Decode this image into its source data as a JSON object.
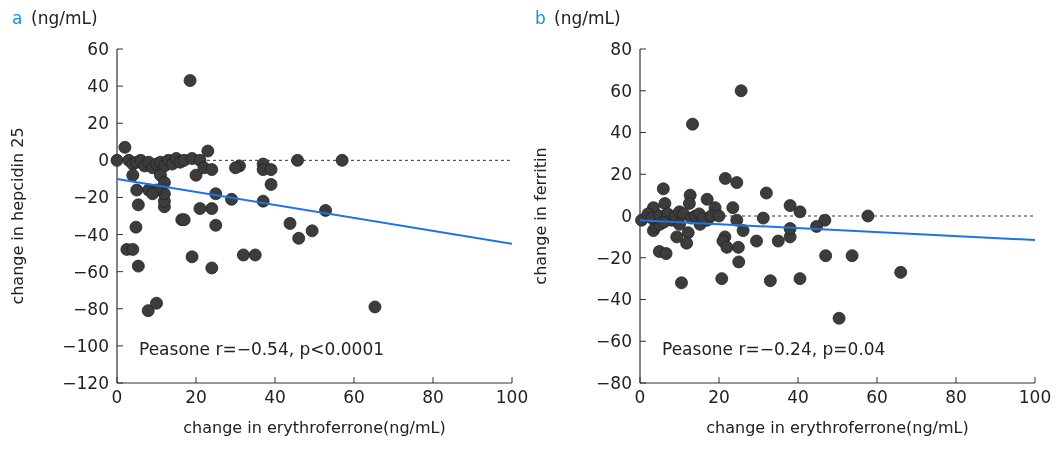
{
  "chart_data": [
    {
      "type": "scatter",
      "title": "a",
      "subtitle": "(ng/mL)",
      "xlabel": "change in erythroferrone(ng/mL)",
      "ylabel": "change in hepcidin 25",
      "xlim": [
        0,
        100
      ],
      "xticks": [
        0,
        20,
        40,
        60,
        80,
        100
      ],
      "ylim": [
        -120,
        60
      ],
      "yticks": [
        -120,
        -100,
        -80,
        -60,
        -40,
        -20,
        0,
        20,
        40,
        60
      ],
      "grid": false,
      "ref_lines": [
        {
          "axis": "y",
          "value": 0,
          "line_style": "dashed",
          "color": "#333333"
        }
      ],
      "annotations": [
        "Peasone r=−0.54, p<0.0001"
      ],
      "series": [
        {
          "marker": "circle",
          "color": "#3c3c3c",
          "x": [
            0,
            2,
            3,
            4,
            5,
            6,
            7,
            8,
            9,
            10,
            11,
            12,
            13,
            14,
            15,
            16,
            17,
            19,
            21,
            23,
            18.5,
            20,
            22,
            4,
            5,
            5.4,
            4.8,
            2.5,
            4,
            5.4,
            7.9,
            10,
            12,
            12,
            12,
            10,
            11,
            8,
            9,
            12,
            16.4,
            19,
            17,
            21,
            24,
            24,
            25,
            24,
            25,
            29,
            31,
            32,
            35,
            37,
            37,
            37,
            39,
            39,
            43.8,
            45.7,
            46,
            49.4,
            52.8,
            57,
            65.3,
            30
          ],
          "values": [
            0,
            7,
            0,
            -2,
            -1,
            0,
            -3,
            -1,
            -4,
            -2,
            -1,
            -3,
            0,
            -2,
            1,
            -1,
            0,
            1,
            0,
            5,
            43,
            -8,
            -4,
            -8,
            -16,
            -24,
            -36,
            -48,
            -48,
            -57,
            -81,
            -77,
            -25,
            -22,
            -18,
            -16,
            -8,
            -16,
            -18,
            -12,
            -32,
            -52,
            -32,
            -26,
            -26,
            -5,
            -18,
            -58,
            -35,
            -21,
            -3,
            -51,
            -51,
            -22,
            -2,
            -5,
            -5,
            -13,
            -34,
            0,
            -42,
            -38,
            -27,
            0,
            -79,
            -4
          ]
        },
        {
          "type": "line",
          "marker": "none",
          "color": "#1e73e6",
          "x": [
            0,
            100
          ],
          "values": [
            -10,
            -45
          ]
        }
      ]
    },
    {
      "type": "scatter",
      "title": "b",
      "subtitle": "(ng/mL)",
      "xlabel": "change in erythroferrone(ng/mL)",
      "ylabel": "change in ferritin",
      "xlim": [
        0,
        100
      ],
      "xticks": [
        0,
        20,
        40,
        60,
        80,
        100
      ],
      "ylim": [
        -80,
        80
      ],
      "yticks": [
        -80,
        -60,
        -40,
        -20,
        0,
        20,
        40,
        60,
        80
      ],
      "grid": false,
      "ref_lines": [
        {
          "axis": "y",
          "value": 0,
          "line_style": "dashed",
          "color": "#333333"
        }
      ],
      "annotations": [
        "Peasone r=−0.24, p=0.04"
      ],
      "series": [
        {
          "marker": "circle",
          "color": "#3c3c3c",
          "x": [
            25.6,
            13.3,
            21.6,
            24.5,
            32,
            5.9,
            12.7,
            17,
            38,
            40.5,
            57.7,
            6.3,
            3.4,
            19,
            23.5,
            31.2,
            46.8,
            44.7,
            24.5,
            26.1,
            29.5,
            35,
            38,
            38,
            21.5,
            21,
            22,
            24.9,
            25,
            20.7,
            10.5,
            33,
            40.5,
            47,
            53.7,
            66,
            50.4,
            4.9,
            6.6,
            12.2,
            9.3,
            11.8,
            15.2,
            3.4,
            4,
            5,
            8,
            0.4,
            17,
            12.5,
            2,
            3,
            5,
            7,
            9,
            10,
            11,
            13,
            14,
            15,
            16,
            18,
            20,
            6,
            10
          ],
          "values": [
            60,
            44,
            18,
            16,
            11,
            13,
            10,
            8,
            5,
            2,
            0,
            6,
            4,
            4,
            4,
            -1,
            -2,
            -5,
            -2,
            -7,
            -12,
            -12,
            -10,
            -6,
            -10,
            -12,
            -15,
            -15,
            -22,
            -30,
            -32,
            -31,
            -30,
            -19,
            -19,
            -27,
            -49,
            -17,
            -18,
            -8,
            -10,
            -13,
            -4,
            -7,
            -5,
            -4,
            -2,
            -2,
            -2,
            6,
            1,
            -1,
            0,
            1,
            0,
            2,
            1,
            -1,
            0,
            1,
            -1,
            0,
            0,
            -3,
            -4
          ]
        },
        {
          "type": "line",
          "marker": "none",
          "color": "#1e73e6",
          "x": [
            0,
            100
          ],
          "values": [
            -2,
            -11.5
          ]
        }
      ]
    }
  ]
}
